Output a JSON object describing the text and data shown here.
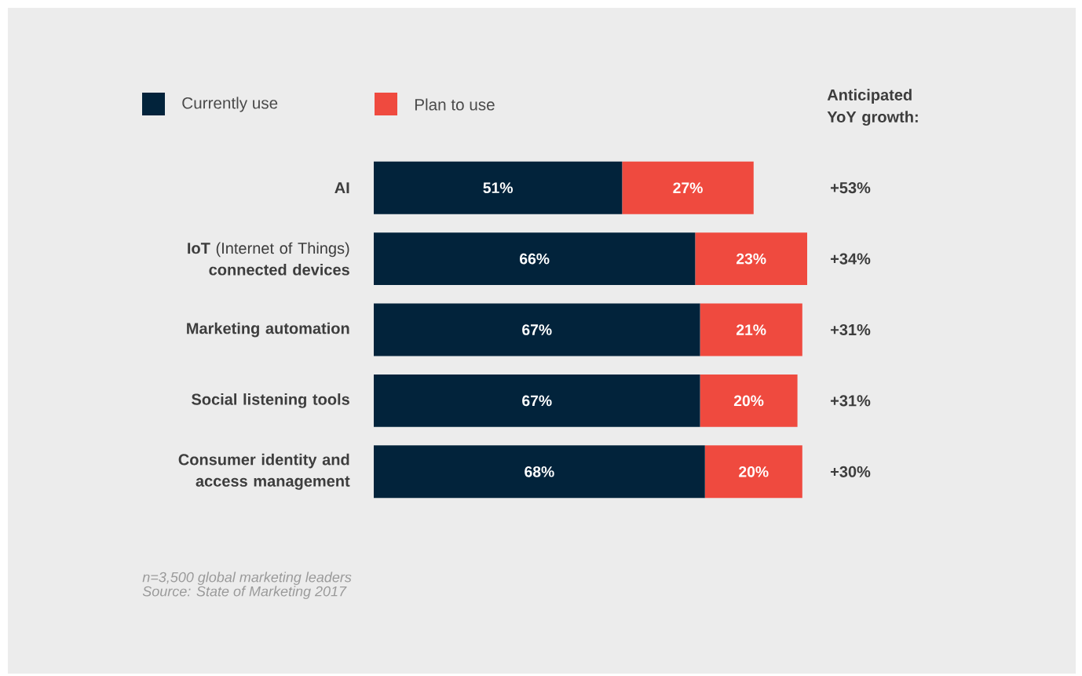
{
  "chart_data": {
    "type": "bar",
    "orientation": "horizontal",
    "stacked": true,
    "legend": "top left",
    "categories": [
      "AI",
      "**IoT** (Internet of Things) **connected devices**",
      "Marketing automation",
      "Social listening tools",
      "Consumer identity and access management"
    ],
    "series": [
      {
        "name": "Currently use",
        "color": "#02233b",
        "values": [
          51,
          66,
          67,
          67,
          68
        ],
        "value_labels": [
          "51%",
          "66%",
          "67%",
          "67%",
          "68%"
        ]
      },
      {
        "name": "Plan to use",
        "color": "#ef4a3f",
        "values": [
          27,
          23,
          21,
          20,
          20
        ],
        "value_labels": [
          "27%",
          "23%",
          "21%",
          "20%",
          "20%"
        ]
      }
    ],
    "annotations": [
      "Anticipated YoY growth:",
      "+53%",
      "+34%",
      "+31%",
      "+31%",
      "+30%",
      "n=3,500 global marketing leaders",
      "Source: State of Marketing 2017"
    ]
  }
}
